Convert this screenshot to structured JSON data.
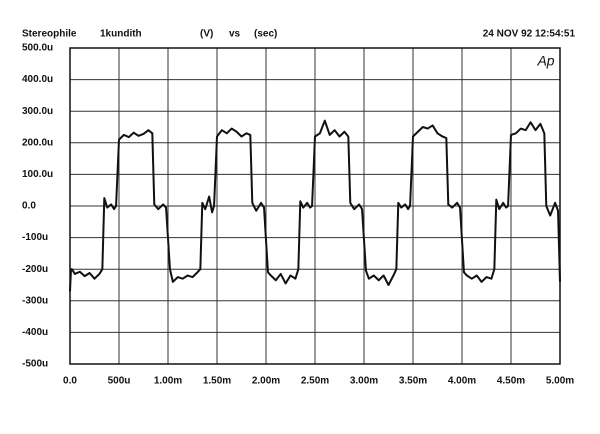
{
  "chart_data": {
    "type": "line",
    "title": "Stereophile",
    "subtitle": "1kundith",
    "y_unit": "(V)",
    "vs": "vs",
    "x_unit": "(sec)",
    "timestamp": "24 NOV 92 12:54:51",
    "logo": "Ap",
    "x": [
      0,
      1e-05,
      2e-05,
      5e-05,
      0.0001,
      0.00015,
      0.0002,
      0.00025,
      0.0003,
      0.00033,
      0.00035,
      0.00038,
      0.00042,
      0.00045,
      0.00047,
      0.0005,
      0.00055,
      0.0006,
      0.00065,
      0.0007,
      0.00075,
      0.0008,
      0.00084,
      0.00086,
      0.0009,
      0.00095,
      0.00098,
      0.00102,
      0.00105,
      0.0011,
      0.00115,
      0.0012,
      0.00125,
      0.0013,
      0.00133,
      0.00135,
      0.00138,
      0.00142,
      0.00145,
      0.00147,
      0.0015,
      0.00155,
      0.0016,
      0.00165,
      0.0017,
      0.00175,
      0.0018,
      0.00184,
      0.00186,
      0.0019,
      0.00195,
      0.00198,
      0.00202,
      0.00205,
      0.0021,
      0.00215,
      0.0022,
      0.00225,
      0.0023,
      0.00233,
      0.00235,
      0.00238,
      0.00242,
      0.00245,
      0.00247,
      0.0025,
      0.00255,
      0.0026,
      0.00265,
      0.0027,
      0.00275,
      0.0028,
      0.00284,
      0.00286,
      0.0029,
      0.00295,
      0.00298,
      0.00302,
      0.00305,
      0.0031,
      0.00315,
      0.0032,
      0.00325,
      0.0033,
      0.00333,
      0.00335,
      0.00338,
      0.00342,
      0.00345,
      0.00347,
      0.0035,
      0.00355,
      0.0036,
      0.00365,
      0.0037,
      0.00375,
      0.0038,
      0.00384,
      0.00386,
      0.0039,
      0.00395,
      0.00398,
      0.00402,
      0.00405,
      0.0041,
      0.00415,
      0.0042,
      0.00425,
      0.0043,
      0.00433,
      0.00435,
      0.00438,
      0.00442,
      0.00445,
      0.00447,
      0.0045,
      0.00455,
      0.0046,
      0.00465,
      0.0047,
      0.00475,
      0.0048,
      0.00484,
      0.00486,
      0.0049,
      0.00495,
      0.00498,
      0.005
    ],
    "series": [
      {
        "color": "#111111",
        "values": [
          -0.00027,
          -0.0002,
          -0.0002,
          -0.000215,
          -0.000208,
          -0.000222,
          -0.000212,
          -0.00023,
          -0.000215,
          -0.0002,
          2.5e-05,
          -5e-06,
          5e-06,
          -1e-05,
          0,
          0.00021,
          0.000225,
          0.000218,
          0.000232,
          0.000222,
          0.000228,
          0.00024,
          0.00023,
          5e-06,
          -1e-05,
          5e-06,
          -5e-06,
          -0.0002,
          -0.00024,
          -0.000225,
          -0.00023,
          -0.00022,
          -0.000225,
          -0.00021,
          -0.0002,
          1e-05,
          -1e-05,
          3e-05,
          -2e-05,
          0,
          0.00022,
          0.00024,
          0.00023,
          0.000245,
          0.000235,
          0.00022,
          0.00023,
          0.000225,
          1e-05,
          -1.5e-05,
          1e-05,
          -5e-06,
          -0.00021,
          -0.00022,
          -0.000235,
          -0.000215,
          -0.000245,
          -0.00022,
          -0.00023,
          -0.0002,
          1.5e-05,
          -5e-06,
          1e-05,
          -5e-06,
          0,
          0.00022,
          0.00023,
          0.00027,
          0.000225,
          0.00024,
          0.00022,
          0.000235,
          0.00022,
          1e-05,
          -1e-05,
          5e-06,
          -1e-05,
          -0.000205,
          -0.00023,
          -0.00022,
          -0.000235,
          -0.00022,
          -0.00025,
          -0.00022,
          -0.0002,
          1e-05,
          -5e-06,
          5e-06,
          -1e-05,
          0,
          0.00022,
          0.000235,
          0.00025,
          0.000245,
          0.000255,
          0.00023,
          0.00022,
          0.000215,
          5e-06,
          -5e-06,
          1e-05,
          -5e-06,
          -0.00021,
          -0.00022,
          -0.00023,
          -0.00022,
          -0.00024,
          -0.000225,
          -0.00023,
          -0.0002,
          2e-05,
          -1e-05,
          1e-05,
          -5e-06,
          0,
          0.000225,
          0.00023,
          0.000245,
          0.00024,
          0.000265,
          0.00024,
          0.00026,
          0.00023,
          0,
          -3e-05,
          1e-05,
          -1.5e-05,
          -0.00024
        ]
      }
    ],
    "xlim": [
      0,
      0.005
    ],
    "xticks": [
      {
        "value": 0,
        "label": "0.0"
      },
      {
        "value": 0.0005,
        "label": "500u"
      },
      {
        "value": 0.001,
        "label": "1.00m"
      },
      {
        "value": 0.0015,
        "label": "1.50m"
      },
      {
        "value": 0.002,
        "label": "2.00m"
      },
      {
        "value": 0.0025,
        "label": "2.50m"
      },
      {
        "value": 0.003,
        "label": "3.00m"
      },
      {
        "value": 0.0035,
        "label": "3.50m"
      },
      {
        "value": 0.004,
        "label": "4.00m"
      },
      {
        "value": 0.0045,
        "label": "4.50m"
      },
      {
        "value": 0.005,
        "label": "5.00m"
      }
    ],
    "ylim": [
      -0.0005,
      0.0005
    ],
    "yticks": [
      {
        "value": 0.0005,
        "label": "500.0u"
      },
      {
        "value": 0.0004,
        "label": "400.0u"
      },
      {
        "value": 0.0003,
        "label": "300.0u"
      },
      {
        "value": 0.0002,
        "label": "200.0u"
      },
      {
        "value": 0.0001,
        "label": "100.0u"
      },
      {
        "value": 0,
        "label": "0.0"
      },
      {
        "value": -0.0001,
        "label": "-100u"
      },
      {
        "value": -0.0002,
        "label": "-200u"
      },
      {
        "value": -0.0003,
        "label": "-300u"
      },
      {
        "value": -0.0004,
        "label": "-400u"
      },
      {
        "value": -0.0005,
        "label": "-500u"
      }
    ],
    "grid": true
  }
}
